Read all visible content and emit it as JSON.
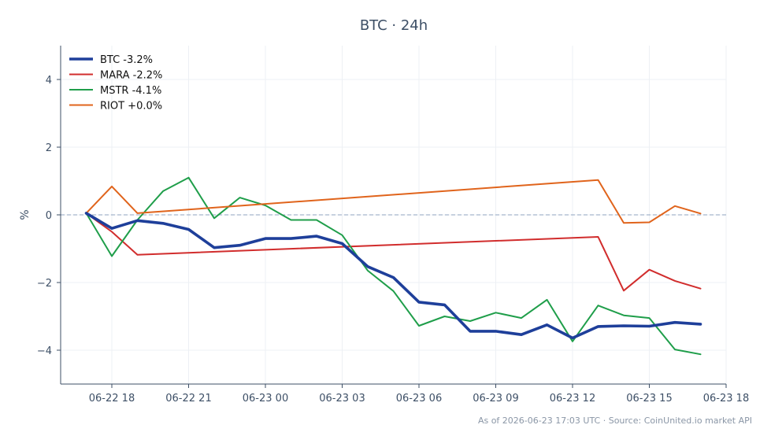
{
  "footer": {
    "source_text": "As of 2026-06-23 17:03 UTC · Source: CoinUnited.io market API"
  },
  "chart_data": {
    "type": "line",
    "title": "BTC · 24h",
    "xlabel": "",
    "ylabel": "%",
    "x": [
      "06-22 17:00",
      "06-22 18:00",
      "06-22 19:00",
      "06-22 20:00",
      "06-22 21:00",
      "06-22 22:00",
      "06-22 23:00",
      "06-23 00:00",
      "06-23 01:00",
      "06-23 02:00",
      "06-23 03:00",
      "06-23 04:00",
      "06-23 05:00",
      "06-23 06:00",
      "06-23 07:00",
      "06-23 08:00",
      "06-23 09:00",
      "06-23 10:00",
      "06-23 11:00",
      "06-23 12:00",
      "06-23 13:00",
      "06-23 14:00",
      "06-23 15:00",
      "06-23 16:00",
      "06-23 17:00"
    ],
    "xlim": [
      "06-22 16:00",
      "06-23 18:00"
    ],
    "ylim": [
      -5,
      5
    ],
    "x_ticks": [
      "06-22 18:00",
      "06-22 21:00",
      "06-23 00:00",
      "06-23 03:00",
      "06-23 06:00",
      "06-23 09:00",
      "06-23 12:00",
      "06-23 15:00",
      "06-23 18:00"
    ],
    "x_tick_labels": [
      "06-22 18",
      "06-22 21",
      "06-23 00",
      "06-23 03",
      "06-23 06",
      "06-23 09",
      "06-23 12",
      "06-23 15",
      "06-23 18"
    ],
    "y_ticks": [
      -4,
      -2,
      0,
      2,
      4
    ],
    "y_tick_labels": [
      "−4",
      "−2",
      "0",
      "2",
      "4"
    ],
    "grid": true,
    "zero_line": {
      "y": 0,
      "style": "dashed",
      "color": "#8fa3bf"
    },
    "legend_position": "top-left",
    "series": [
      {
        "name": "BTC -3.2%",
        "color": "#1e3f9a",
        "bold": true,
        "values": [
          0.05,
          -0.4,
          -0.17,
          -0.25,
          -0.43,
          -0.97,
          -0.9,
          -0.7,
          -0.7,
          -0.63,
          -0.85,
          -1.53,
          -1.85,
          -2.58,
          -2.66,
          -3.44,
          -3.44,
          -3.54,
          -3.25,
          -3.64,
          -3.3,
          -3.28,
          -3.29,
          -3.18,
          -3.23
        ]
      },
      {
        "name": "MARA -2.2%",
        "color": "#d12d2d",
        "bold": false,
        "points": [
          [
            "06-22 17:00",
            0.05
          ],
          [
            "06-22 18:00",
            -0.5
          ],
          [
            "06-22 19:00",
            -1.18
          ],
          [
            "06-23 13:00",
            -0.65
          ],
          [
            "06-23 14:00",
            -2.24
          ],
          [
            "06-23 15:00",
            -1.62
          ],
          [
            "06-23 16:00",
            -1.95
          ],
          [
            "06-23 17:00",
            -2.18
          ]
        ]
      },
      {
        "name": "MSTR -4.1%",
        "color": "#1f9e4a",
        "bold": false,
        "values": [
          0.05,
          -1.22,
          -0.15,
          0.7,
          1.1,
          -0.1,
          0.51,
          0.28,
          -0.15,
          -0.15,
          -0.6,
          -1.65,
          -2.25,
          -3.28,
          -3.0,
          -3.14,
          -2.89,
          -3.05,
          -2.51,
          -3.74,
          -2.68,
          -2.97,
          -3.05,
          -3.98,
          -4.12
        ]
      },
      {
        "name": "RIOT +0.0%",
        "color": "#e0641c",
        "bold": false,
        "points": [
          [
            "06-22 17:00",
            0.05
          ],
          [
            "06-22 18:00",
            0.84
          ],
          [
            "06-22 19:00",
            0.05
          ],
          [
            "06-23 13:00",
            1.03
          ],
          [
            "06-23 14:00",
            -0.24
          ],
          [
            "06-23 15:00",
            -0.22
          ],
          [
            "06-23 16:00",
            0.26
          ],
          [
            "06-23 17:00",
            0.04
          ]
        ]
      }
    ]
  }
}
